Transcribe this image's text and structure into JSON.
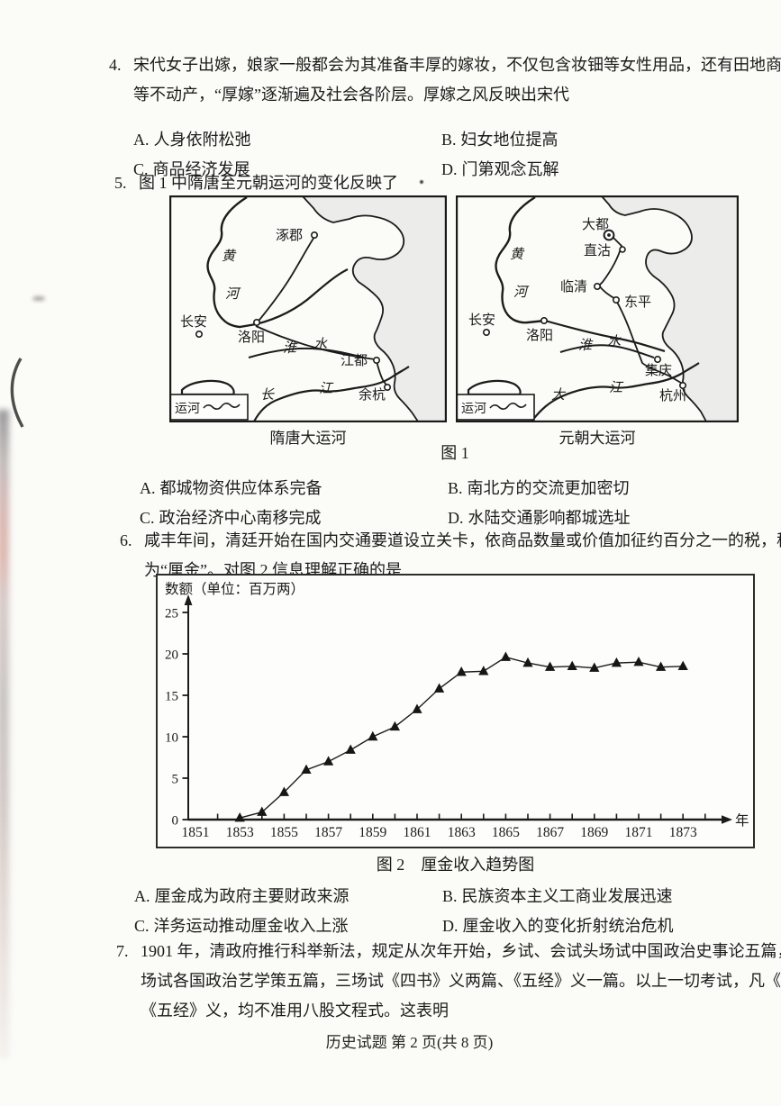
{
  "page": {
    "footer": "历史试题  第 2 页(共 8 页)"
  },
  "q4": {
    "number": "4.",
    "stem": "宋代女子出嫁，娘家一般都会为其准备丰厚的嫁妆，不仅包含妆钿等女性用品，还有田地商铺等不动产，“厚嫁”逐渐遍及社会各阶层。厚嫁之风反映出宋代",
    "options": [
      {
        "label": "A.",
        "text": "人身依附松弛"
      },
      {
        "label": "B.",
        "text": "妇女地位提高"
      },
      {
        "label": "C.",
        "text": "商品经济发展"
      },
      {
        "label": "D.",
        "text": "门第观念瓦解"
      }
    ]
  },
  "q5": {
    "number": "5.",
    "stem": "图 1 中隋唐至元朝运河的变化反映了",
    "figure": {
      "caption": "图 1",
      "map1": {
        "caption": "隋唐大运河",
        "legend": "运河",
        "labels": {
          "zhuojun": "涿郡",
          "huang": "黄",
          "he": "河",
          "changan": "长安",
          "luoyang": "洛阳",
          "huai": "淮",
          "shui": "水",
          "jiangdu": "江都",
          "chang": "长",
          "jiang": "江",
          "yuhang": "余杭"
        }
      },
      "map2": {
        "caption": "元朝大运河",
        "legend": "运河",
        "labels": {
          "dadu": "大都",
          "zhigu": "直沽",
          "huang": "黄",
          "he": "河",
          "linqing": "临清",
          "dongping": "东平",
          "changan": "长安",
          "luoyang": "洛阳",
          "huai": "淮",
          "shui": "水",
          "jiqing": "集庆",
          "da": "大",
          "jiang": "江",
          "hangzhou": "杭州"
        }
      }
    },
    "options": [
      {
        "label": "A.",
        "text": "都城物资供应体系完备"
      },
      {
        "label": "B.",
        "text": "南北方的交流更加密切"
      },
      {
        "label": "C.",
        "text": "政治经济中心南移完成"
      },
      {
        "label": "D.",
        "text": "水陆交通影响都城选址"
      }
    ]
  },
  "q6": {
    "number": "6.",
    "stem": "咸丰年间，清廷开始在国内交通要道设立关卡，依商品数量或价值加征约百分之一的税，称为“厘金”。对图 2 信息理解正确的是",
    "options": [
      {
        "label": "A.",
        "text": "厘金成为政府主要财政来源"
      },
      {
        "label": "B.",
        "text": "民族资本主义工商业发展迅速"
      },
      {
        "label": "C.",
        "text": "洋务运动推动厘金收入上涨"
      },
      {
        "label": "D.",
        "text": "厘金收入的变化折射统治危机"
      }
    ]
  },
  "chart_data": {
    "type": "line",
    "title": "图 2　厘金收入趋势图",
    "ylabel": "数额（单位：百万两）",
    "x_axis_unit": "年",
    "x": [
      1853,
      1854,
      1855,
      1856,
      1857,
      1858,
      1859,
      1860,
      1861,
      1862,
      1863,
      1864,
      1865,
      1866,
      1867,
      1868,
      1869,
      1870,
      1871,
      1872,
      1873
    ],
    "values": [
      0.2,
      0.9,
      3.3,
      6.0,
      7.0,
      8.4,
      10.0,
      11.2,
      13.3,
      15.8,
      17.8,
      17.9,
      19.6,
      18.9,
      18.4,
      18.5,
      18.3,
      18.9,
      19.0,
      18.4,
      18.5
    ],
    "xticks": [
      1851,
      1853,
      1855,
      1857,
      1859,
      1861,
      1863,
      1865,
      1867,
      1869,
      1871,
      1873
    ],
    "yticks": [
      0,
      5,
      10,
      15,
      20,
      25
    ],
    "xlim": [
      1851,
      1874
    ],
    "ylim": [
      0,
      26
    ],
    "grid": false,
    "legend_position": "none",
    "marker": "triangle",
    "line_color": "#1b1b1b"
  },
  "q7": {
    "number": "7.",
    "stem": "1901 年，清政府推行科举新法，规定从次年开始，乡试、会试头场试中国政治史事论五篇，二场试各国政治艺学策五篇，三场试《四书》义两篇、《五经》义一篇。以上一切考试，凡《四书》《五经》义，均不准用八股文程式。这表明"
  }
}
